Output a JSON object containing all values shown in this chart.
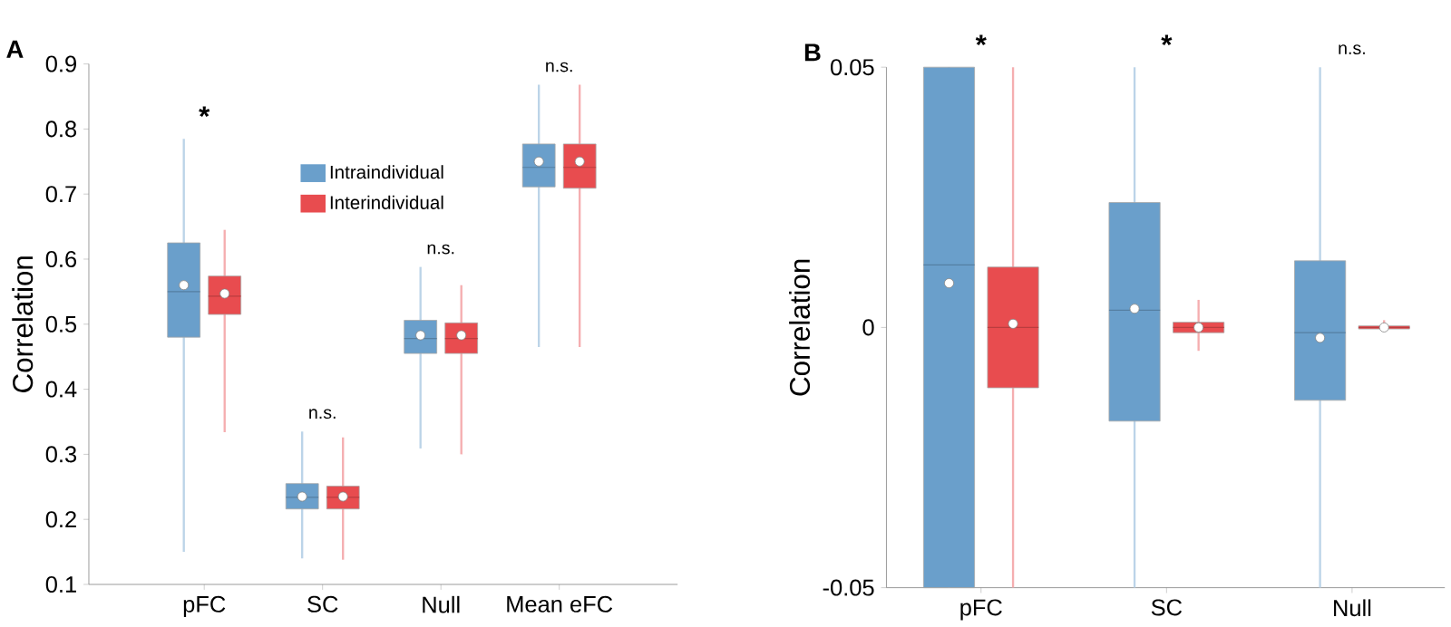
{
  "chart_data": [
    {
      "type": "box",
      "title": "A",
      "ylabel": "Correlation",
      "categories": [
        "pFC",
        "SC",
        "Null",
        "Mean eFC"
      ],
      "ylim": [
        0.1,
        0.9
      ],
      "yticks": [
        0.1,
        0.2,
        0.3,
        0.4,
        0.5,
        0.6,
        0.7,
        0.8,
        0.9
      ],
      "legend": "top",
      "series": [
        {
          "name": "Intraindividual",
          "color": "#6a9fcb",
          "boxes": [
            {
              "low": 0.15,
              "q1": 0.48,
              "median": 0.55,
              "q3": 0.625,
              "high": 0.785,
              "mean": 0.56
            },
            {
              "low": 0.14,
              "q1": 0.216,
              "median": 0.234,
              "q3": 0.255,
              "high": 0.335,
              "mean": 0.235
            },
            {
              "low": 0.309,
              "q1": 0.455,
              "median": 0.478,
              "q3": 0.506,
              "high": 0.588,
              "mean": 0.483
            },
            {
              "low": 0.465,
              "q1": 0.711,
              "median": 0.741,
              "q3": 0.777,
              "high": 0.868,
              "mean": 0.75
            }
          ]
        },
        {
          "name": "Interindividual",
          "color": "#e84c4f",
          "boxes": [
            {
              "low": 0.334,
              "q1": 0.515,
              "median": 0.543,
              "q3": 0.574,
              "high": 0.645,
              "mean": 0.547
            },
            {
              "low": 0.138,
              "q1": 0.216,
              "median": 0.234,
              "q3": 0.251,
              "high": 0.326,
              "mean": 0.235
            },
            {
              "low": 0.3,
              "q1": 0.455,
              "median": 0.478,
              "q3": 0.502,
              "high": 0.56,
              "mean": 0.483
            },
            {
              "low": 0.465,
              "q1": 0.709,
              "median": 0.741,
              "q3": 0.777,
              "high": 0.868,
              "mean": 0.75
            }
          ]
        }
      ],
      "annotations": [
        "*",
        "n.s.",
        "n.s.",
        "n.s."
      ]
    },
    {
      "type": "box",
      "title": "B",
      "ylabel": "Correlation",
      "categories": [
        "pFC",
        "SC",
        "Null"
      ],
      "ylim": [
        -0.05,
        0.05
      ],
      "yticks": [
        -0.05,
        0,
        0.05
      ],
      "series": [
        {
          "color": "#6a9fcb",
          "boxes": [
            {
              "low": -0.05,
              "q1": -0.05,
              "median": 0.012,
              "q3": 0.05,
              "high": 0.05,
              "mean": 0.0085
            },
            {
              "low": -0.05,
              "q1": -0.018,
              "median": 0.0033,
              "q3": 0.024,
              "high": 0.05,
              "mean": 0.0036
            },
            {
              "low": -0.05,
              "q1": -0.014,
              "median": -0.001,
              "q3": 0.0128,
              "high": 0.05,
              "mean": -0.002
            }
          ]
        },
        {
          "color": "#e84c4f",
          "boxes": [
            {
              "low": -0.05,
              "q1": -0.0116,
              "median": 0,
              "q3": 0.0116,
              "high": 0.05,
              "mean": 0.0007
            },
            {
              "low": -0.0045,
              "q1": -0.001,
              "median": 0,
              "q3": 0.001,
              "high": 0.0053,
              "mean": 0
            },
            {
              "low": -0.0008,
              "q1": -0.0003,
              "median": 0,
              "q3": 0.0003,
              "high": 0.0014,
              "mean": 0
            }
          ]
        }
      ],
      "annotations": [
        "*",
        "*",
        "n.s."
      ]
    }
  ]
}
